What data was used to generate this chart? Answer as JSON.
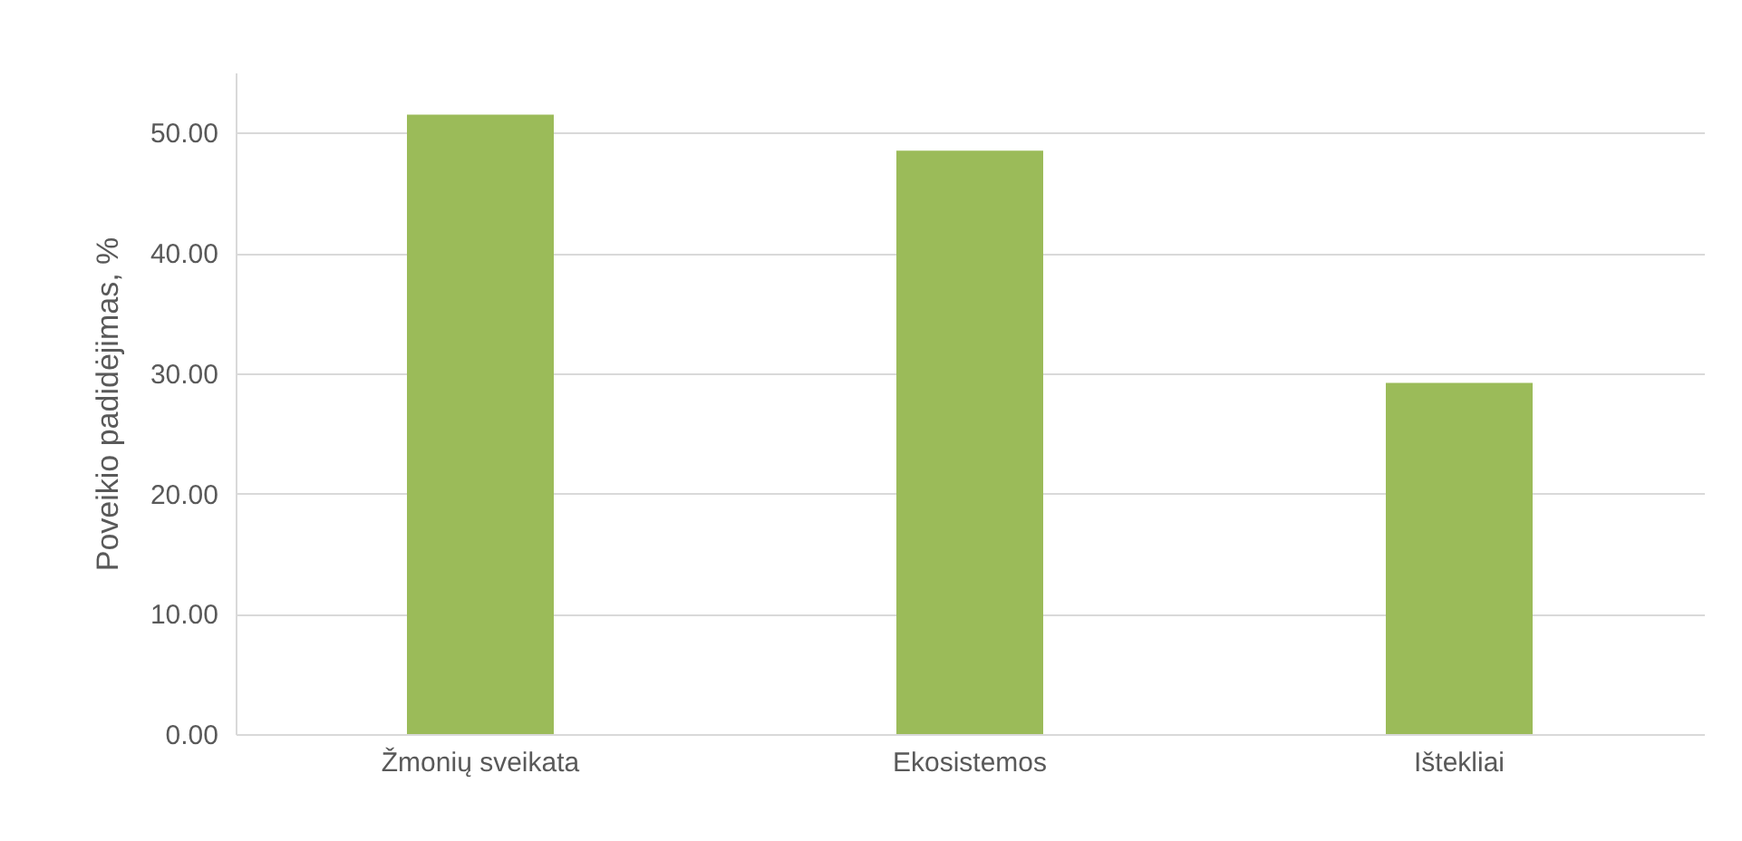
{
  "chart_data": {
    "type": "bar",
    "ylabel": "Poveikio padidėjimas, %",
    "categories": [
      "Žmonių sveikata",
      "Ekosistemos",
      "Ištekliai"
    ],
    "values": [
      51.5,
      48.5,
      29.2
    ],
    "color": "#9bbb59",
    "ylim": [
      0,
      55
    ],
    "yticks": [
      {
        "value": 0,
        "label": "0.00"
      },
      {
        "value": 10,
        "label": "10.00"
      },
      {
        "value": 20,
        "label": "20.00"
      },
      {
        "value": 30,
        "label": "30.00"
      },
      {
        "value": 40,
        "label": "40.00"
      },
      {
        "value": 50,
        "label": "50.00"
      }
    ],
    "grid": "y"
  }
}
